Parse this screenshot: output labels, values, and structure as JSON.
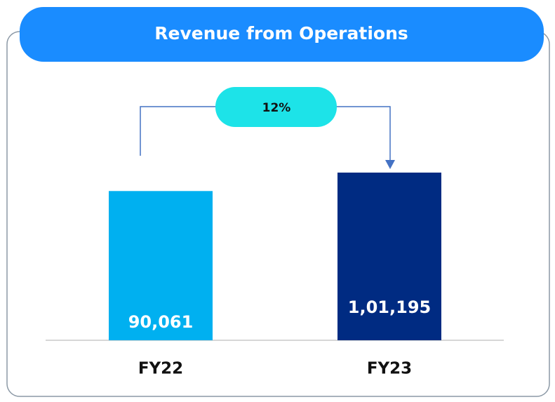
{
  "chart_data": {
    "type": "bar",
    "title": "Revenue from Operations",
    "categories": [
      "FY22",
      "FY23"
    ],
    "values": [
      90061,
      101195
    ],
    "value_labels": [
      "90,061",
      "1,01,195"
    ],
    "colors": [
      "#00b0f0",
      "#002b82"
    ],
    "annotation": "12%"
  }
}
